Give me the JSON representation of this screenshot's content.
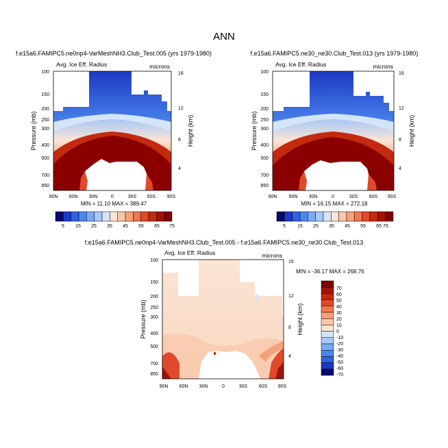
{
  "figure_title": "ANN",
  "chart_data": [
    {
      "type": "heatmap",
      "title": "f.e15a6.FAMIPC5.ne0np4-VarMeshNH3.Club_Test.005 (yrs 1979-1980)",
      "left_label": "Avg. Ice Eff. Radius",
      "right_label": "microns",
      "ylabel": "Pressure (mb)",
      "ylabel_right": "Height (km)",
      "x_ticks": [
        "90N",
        "60N",
        "30N",
        "0",
        "30S",
        "60S",
        "90S"
      ],
      "y_ticks": [
        "100",
        "150",
        "200",
        "250",
        "300",
        "400",
        "500",
        "700",
        "850"
      ],
      "y_ticks_right": [
        "16",
        "12",
        "8",
        "4"
      ],
      "stats": "MIN = 11.10  MAX = 389.47",
      "colorbar_labels": [
        "5",
        "15",
        "25",
        "35",
        "45",
        "55",
        "65",
        "75"
      ]
    },
    {
      "type": "heatmap",
      "title": "f.e15a6.FAMIPC5.ne30_ne30.Club_Test.013 (yrs 1979-1980)",
      "left_label": "Avg. Ice Eff. Radius",
      "right_label": "microns",
      "ylabel": "Pressure (mb)",
      "ylabel_right": "Height (km)",
      "x_ticks": [
        "90N",
        "60N",
        "30N",
        "0",
        "30S",
        "60S",
        "90S"
      ],
      "y_ticks": [
        "100",
        "150",
        "200",
        "250",
        "300",
        "400",
        "500",
        "700",
        "850"
      ],
      "y_ticks_right": [
        "16",
        "12",
        "8",
        "4"
      ],
      "stats": "MIN = 16.15  MAX = 272.18",
      "colorbar_labels": [
        "5",
        "15",
        "25",
        "35",
        "45",
        "55",
        "65",
        "75"
      ]
    },
    {
      "type": "heatmap",
      "title": "f.e15a6.FAMIPC5.ne0np4-VarMeshNH3.Club_Test.005 - f.e15a6.FAMIPC5.ne30_ne30.Club_Test.013",
      "left_label": "Avg. Ice Eff. Radius",
      "right_label": "microns",
      "ylabel": "Pressure (mb)",
      "ylabel_right": "Height (km)",
      "x_ticks": [
        "90N",
        "60N",
        "30N",
        "0",
        "30S",
        "60S",
        "90S"
      ],
      "y_ticks": [
        "100",
        "150",
        "200",
        "250",
        "300",
        "400",
        "500",
        "700",
        "850"
      ],
      "y_ticks_right": [
        "16",
        "12",
        "8",
        "4"
      ],
      "stats": "MIN = -36.17  MAX = 268.76",
      "colorbar_labels": [
        "70",
        "60",
        "50",
        "40",
        "30",
        "20",
        "10",
        "0",
        "-10",
        "-20",
        "-30",
        "-40",
        "-50",
        "-60",
        "-70"
      ]
    }
  ],
  "colors": {
    "abs_scale": [
      "#08086b",
      "#1c38c4",
      "#2e64e0",
      "#4a86ec",
      "#7aaaf2",
      "#a8c8f8",
      "#d4e4fb",
      "#fbe4d4",
      "#f9c6a8",
      "#f6a07a",
      "#f07650",
      "#e04a2a",
      "#c42a10",
      "#a01406",
      "#800000"
    ],
    "diff_scale": [
      "#800000",
      "#a01406",
      "#c42a10",
      "#e04a2a",
      "#f07650",
      "#f6a07a",
      "#f9c6a8",
      "#fbe4d4",
      "#d4e4fb",
      "#a8c8f8",
      "#7aaaf2",
      "#4a86ec",
      "#2e64e0",
      "#1c38c4",
      "#08086b"
    ]
  }
}
